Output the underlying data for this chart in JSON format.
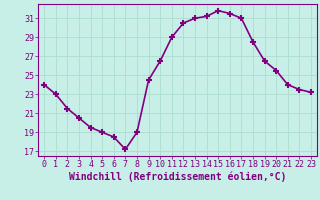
{
  "x": [
    0,
    1,
    2,
    3,
    4,
    5,
    6,
    7,
    8,
    9,
    10,
    11,
    12,
    13,
    14,
    15,
    16,
    17,
    18,
    19,
    20,
    21,
    22,
    23
  ],
  "y": [
    24.0,
    23.0,
    21.5,
    20.5,
    19.5,
    19.0,
    18.5,
    17.2,
    19.0,
    24.5,
    26.5,
    29.0,
    30.5,
    31.0,
    31.2,
    31.8,
    31.5,
    31.0,
    28.5,
    26.5,
    25.5,
    24.0,
    23.5,
    23.2
  ],
  "bg_color": "#c8eee8",
  "plot_bg_color": "#c8eee8",
  "line_color": "#800080",
  "marker": "+",
  "marker_size": 5,
  "marker_linewidth": 1.5,
  "xlabel": "Windchill (Refroidissement éolien,°C)",
  "ylim": [
    16.5,
    32.5
  ],
  "xlim": [
    -0.5,
    23.5
  ],
  "yticks": [
    17,
    19,
    21,
    23,
    25,
    27,
    29,
    31
  ],
  "xticks": [
    0,
    1,
    2,
    3,
    4,
    5,
    6,
    7,
    8,
    9,
    10,
    11,
    12,
    13,
    14,
    15,
    16,
    17,
    18,
    19,
    20,
    21,
    22,
    23
  ],
  "grid_color": "#aaddcc",
  "tick_label_color": "#800080",
  "xlabel_color": "#800080",
  "xlabel_fontsize": 7,
  "tick_fontsize": 6,
  "spine_color": "#800080",
  "linewidth": 1.2
}
